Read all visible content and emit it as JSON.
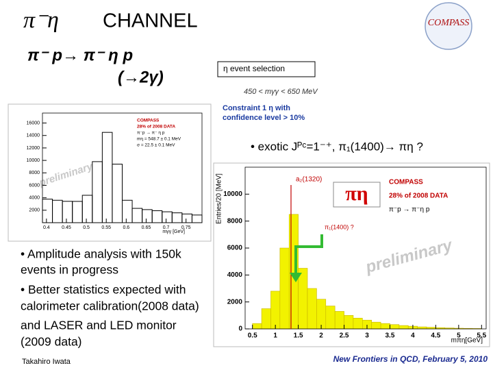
{
  "slide": {
    "title_symbol": "π⁻η",
    "title": "CHANNEL",
    "logo": "COMPASS",
    "reaction": "π⁻ p→ π⁻ η  p",
    "decay": "(→2γ)",
    "selection_header": "η  event  selection",
    "selection_cut": "450  <  mγγ  <  650 MeV",
    "constraint": [
      "Constraint  1 η  with",
      "confidence level > 10%"
    ],
    "exotic": "• exotic Jᴾᶜ=1⁻⁺, π₁(1400)→ πη  ?",
    "bullets": [
      "• Amplitude analysis with 150k",
      "events  in progress",
      "• Better statistics expected with",
      "calorimeter calibration(2008 data)",
      " and LASER and LED monitor",
      "(2009 data)"
    ],
    "author": "Takahiro Iwata",
    "footer": "New Frontiers in QCD,  February 5, 2010"
  },
  "chart_data": [
    {
      "type": "histogram",
      "x_label": "mγγ [GeV]",
      "legend_text": [
        "COMPASS",
        "28% of 2008 DATA",
        "π⁻p → π⁻ η p",
        "mη = 548.7 ± 0.1 MeV",
        "σ = 22.5 ± 0.1 MeV"
      ],
      "watermark": "preliminary",
      "bins": [
        0.39,
        0.415,
        0.44,
        0.465,
        0.49,
        0.515,
        0.54,
        0.565,
        0.59,
        0.615,
        0.64,
        0.665,
        0.69,
        0.715,
        0.74,
        0.765,
        0.79
      ],
      "values": [
        3780,
        3600,
        3430,
        3420,
        4400,
        9800,
        14500,
        9400,
        3600,
        2300,
        2100,
        1920,
        1750,
        1580,
        1400,
        1230
      ],
      "color": "#000000",
      "filled": false,
      "xlim": [
        0.39,
        0.79
      ],
      "xticks": [
        0.4,
        0.45,
        0.5,
        0.55,
        0.6,
        0.65,
        0.7,
        0.75
      ],
      "ylim": [
        0,
        17600
      ],
      "yticks": [
        2000,
        4000,
        6000,
        8000,
        10000,
        12000,
        14000,
        16000
      ]
    },
    {
      "type": "histogram",
      "x_label": "mπη[GeV]",
      "y_label": "Entries/20 [MeV]",
      "legend_text": [
        "COMPASS",
        "28% of 2008 DATA",
        "π⁻p → π⁻η p"
      ],
      "annotations": [
        "a₂(1320)",
        "π₁(1400)   ?",
        "πη"
      ],
      "watermark": "preliminary",
      "bins": [
        0.5,
        0.7,
        0.9,
        1.1,
        1.3,
        1.5,
        1.7,
        1.9,
        2.1,
        2.3,
        2.5,
        2.7,
        2.9,
        3.1,
        3.3,
        3.5,
        3.7,
        3.9,
        4.1,
        4.3,
        4.5,
        4.7,
        4.9,
        5.1,
        5.3,
        5.5
      ],
      "values": [
        400,
        1500,
        2800,
        6000,
        8500,
        4500,
        3000,
        2200,
        1700,
        1300,
        1000,
        800,
        650,
        500,
        400,
        320,
        250,
        200,
        150,
        120,
        90,
        70,
        50,
        40,
        30
      ],
      "color": "#f2f200",
      "filled": true,
      "xlim": [
        0.34,
        5.6
      ],
      "xticks": [
        0.5,
        1,
        1.5,
        2,
        2.5,
        3,
        3.5,
        4,
        4.5,
        5,
        5.5
      ],
      "ylim": [
        0,
        12000
      ],
      "yticks": [
        0,
        2000,
        4000,
        6000,
        8000,
        10000
      ]
    }
  ]
}
